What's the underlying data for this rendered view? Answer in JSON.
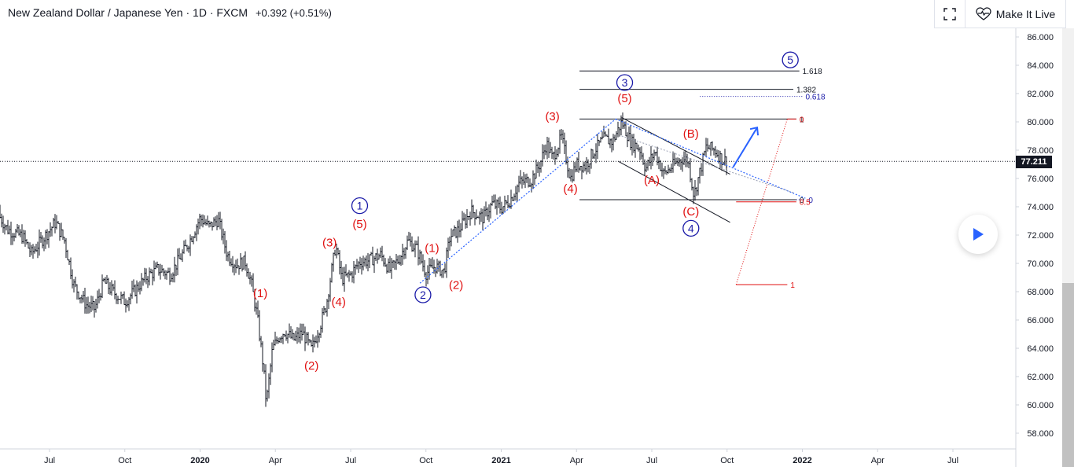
{
  "header": {
    "symbol_title": "New Zealand Dollar / Japanese Yen · 1D · FXCM",
    "change": "+0.392 (+0.51%)"
  },
  "toolbar": {
    "expand_icon": "fullscreen-icon",
    "live_icon": "heart-pulse-icon",
    "live_label": "Make It Live"
  },
  "colors": {
    "candle": "#131722",
    "wave_red": "#e01010",
    "wave_blue": "#1a1aa8",
    "trend_blue": "#2962ff",
    "price_tag_bg": "#131722"
  },
  "chart_data": {
    "type": "candlestick",
    "title": "New Zealand Dollar / Japanese Yen · 1D · FXCM",
    "current_price": "77.211",
    "ylim": [
      57,
      87
    ],
    "y_ticks": [
      "86.000",
      "84.000",
      "82.000",
      "80.000",
      "78.000",
      "76.000",
      "74.000",
      "72.000",
      "70.000",
      "68.000",
      "66.000",
      "64.000",
      "62.000",
      "60.000",
      "58.000"
    ],
    "x_ticks": [
      {
        "label": "Jul",
        "date": 2019.5,
        "bold": false
      },
      {
        "label": "Oct",
        "date": 2019.75,
        "bold": false
      },
      {
        "label": "2020",
        "date": 2020.0,
        "bold": true
      },
      {
        "label": "Apr",
        "date": 2020.25,
        "bold": false
      },
      {
        "label": "Jul",
        "date": 2020.5,
        "bold": false
      },
      {
        "label": "Oct",
        "date": 2020.75,
        "bold": false
      },
      {
        "label": "2021",
        "date": 2021.0,
        "bold": true
      },
      {
        "label": "Apr",
        "date": 2021.25,
        "bold": false
      },
      {
        "label": "Jul",
        "date": 2021.5,
        "bold": false
      },
      {
        "label": "Oct",
        "date": 2021.75,
        "bold": false
      },
      {
        "label": "2022",
        "date": 2022.0,
        "bold": true
      },
      {
        "label": "Apr",
        "date": 2022.25,
        "bold": false
      },
      {
        "label": "Jul",
        "date": 2022.5,
        "bold": false
      }
    ],
    "price_path": [
      [
        2019.32,
        73.8
      ],
      [
        2019.36,
        72.4
      ],
      [
        2019.41,
        71.9
      ],
      [
        2019.44,
        70.7
      ],
      [
        2019.48,
        71.8
      ],
      [
        2019.52,
        72.9
      ],
      [
        2019.55,
        71.6
      ],
      [
        2019.58,
        68.5
      ],
      [
        2019.62,
        67.1
      ],
      [
        2019.65,
        66.8
      ],
      [
        2019.68,
        68.7
      ],
      [
        2019.71,
        68.0
      ],
      [
        2019.75,
        67.3
      ],
      [
        2019.78,
        68.0
      ],
      [
        2019.82,
        69.0
      ],
      [
        2019.86,
        69.6
      ],
      [
        2019.9,
        69.2
      ],
      [
        2019.94,
        70.6
      ],
      [
        2019.97,
        71.8
      ],
      [
        2020.0,
        73.2
      ],
      [
        2020.03,
        72.6
      ],
      [
        2020.06,
        73.1
      ],
      [
        2020.09,
        70.6
      ],
      [
        2020.12,
        69.9
      ],
      [
        2020.15,
        70.1
      ],
      [
        2020.17,
        68.6
      ],
      [
        2020.19,
        66.2
      ],
      [
        2020.21,
        62.7
      ],
      [
        2020.22,
        60.1
      ],
      [
        2020.24,
        63.9
      ],
      [
        2020.26,
        64.8
      ],
      [
        2020.28,
        65.2
      ],
      [
        2020.31,
        64.6
      ],
      [
        2020.34,
        65.1
      ],
      [
        2020.37,
        63.9
      ],
      [
        2020.4,
        65.7
      ],
      [
        2020.42,
        67.2
      ],
      [
        2020.45,
        71.3
      ],
      [
        2020.47,
        68.9
      ],
      [
        2020.5,
        69.2
      ],
      [
        2020.53,
        70.1
      ],
      [
        2020.56,
        70.2
      ],
      [
        2020.6,
        70.6
      ],
      [
        2020.63,
        69.5
      ],
      [
        2020.66,
        70.3
      ],
      [
        2020.69,
        71.6
      ],
      [
        2020.72,
        71.0
      ],
      [
        2020.75,
        69.3
      ],
      [
        2020.78,
        69.8
      ],
      [
        2020.81,
        69.4
      ],
      [
        2020.83,
        71.9
      ],
      [
        2020.86,
        72.4
      ],
      [
        2020.9,
        73.7
      ],
      [
        2020.94,
        73.2
      ],
      [
        2020.97,
        74.2
      ],
      [
        2021.0,
        73.9
      ],
      [
        2021.03,
        74.5
      ],
      [
        2021.06,
        75.7
      ],
      [
        2021.1,
        75.9
      ],
      [
        2021.13,
        77.1
      ],
      [
        2021.15,
        78.5
      ],
      [
        2021.17,
        77.4
      ],
      [
        2021.2,
        78.9
      ],
      [
        2021.23,
        76.0
      ],
      [
        2021.25,
        77.0
      ],
      [
        2021.28,
        76.9
      ],
      [
        2021.31,
        78.0
      ],
      [
        2021.34,
        78.8
      ],
      [
        2021.37,
        78.6
      ],
      [
        2021.4,
        80.0
      ],
      [
        2021.43,
        78.6
      ],
      [
        2021.46,
        78.1
      ],
      [
        2021.48,
        76.7
      ],
      [
        2021.51,
        77.9
      ],
      [
        2021.54,
        76.3
      ],
      [
        2021.57,
        76.9
      ],
      [
        2021.6,
        77.4
      ],
      [
        2021.62,
        77.3
      ],
      [
        2021.64,
        74.8
      ],
      [
        2021.66,
        76.5
      ],
      [
        2021.68,
        78.2
      ],
      [
        2021.71,
        78.0
      ],
      [
        2021.73,
        77.4
      ],
      [
        2021.75,
        77.2
      ]
    ],
    "wave_labels": [
      {
        "text": "(1)",
        "date": 2020.2,
        "price": 67.6,
        "style": "red"
      },
      {
        "text": "(2)",
        "date": 2020.37,
        "price": 62.5,
        "style": "red"
      },
      {
        "text": "(3)",
        "date": 2020.43,
        "price": 71.2,
        "style": "red"
      },
      {
        "text": "(4)",
        "date": 2020.46,
        "price": 67.0,
        "style": "red"
      },
      {
        "text": "(5)",
        "date": 2020.53,
        "price": 72.5,
        "style": "red"
      },
      {
        "text": "1",
        "date": 2020.53,
        "price": 73.8,
        "style": "blue-circle"
      },
      {
        "text": "(1)",
        "date": 2020.77,
        "price": 70.8,
        "style": "red"
      },
      {
        "text": "2",
        "date": 2020.74,
        "price": 67.5,
        "style": "blue-circle"
      },
      {
        "text": "(2)",
        "date": 2020.85,
        "price": 68.2,
        "style": "red"
      },
      {
        "text": "(3)",
        "date": 2021.17,
        "price": 80.1,
        "style": "red"
      },
      {
        "text": "(4)",
        "date": 2021.23,
        "price": 75.0,
        "style": "red"
      },
      {
        "text": "(5)",
        "date": 2021.41,
        "price": 81.4,
        "style": "red"
      },
      {
        "text": "3",
        "date": 2021.41,
        "price": 82.5,
        "style": "blue-circle"
      },
      {
        "text": "(A)",
        "date": 2021.5,
        "price": 75.6,
        "style": "red"
      },
      {
        "text": "(B)",
        "date": 2021.63,
        "price": 78.9,
        "style": "red"
      },
      {
        "text": "(C)",
        "date": 2021.63,
        "price": 73.4,
        "style": "red"
      },
      {
        "text": "4",
        "date": 2021.63,
        "price": 72.2,
        "style": "blue-circle"
      },
      {
        "text": "5",
        "date": 2021.96,
        "price": 84.1,
        "style": "blue-circle"
      }
    ],
    "fib_levels": [
      {
        "label": "1.618",
        "price": 83.6,
        "start": 2021.26,
        "end": 2021.99,
        "color": "black"
      },
      {
        "label": "1.382",
        "price": 82.3,
        "start": 2021.26,
        "end": 2021.97,
        "color": "black"
      },
      {
        "label": "0.618",
        "price": 81.8,
        "start": 2021.66,
        "end": 2022.0,
        "color": "blue"
      },
      {
        "label": "1",
        "price": 80.2,
        "start": 2021.26,
        "end": 2021.98,
        "color": "black"
      },
      {
        "label": "0",
        "price": 80.2,
        "start": 2021.95,
        "end": 2021.98,
        "color": "red"
      },
      {
        "label": "0",
        "price": 74.5,
        "start": 2021.26,
        "end": 2021.98,
        "color": "black"
      },
      {
        "label": "0",
        "price": 74.5,
        "start": 2021.98,
        "end": 2022.01,
        "color": "blue"
      },
      {
        "label": "0.5",
        "price": 74.35,
        "start": 2021.78,
        "end": 2021.98,
        "color": "red"
      },
      {
        "label": "1",
        "price": 68.5,
        "start": 2021.78,
        "end": 2021.95,
        "color": "red"
      }
    ]
  }
}
